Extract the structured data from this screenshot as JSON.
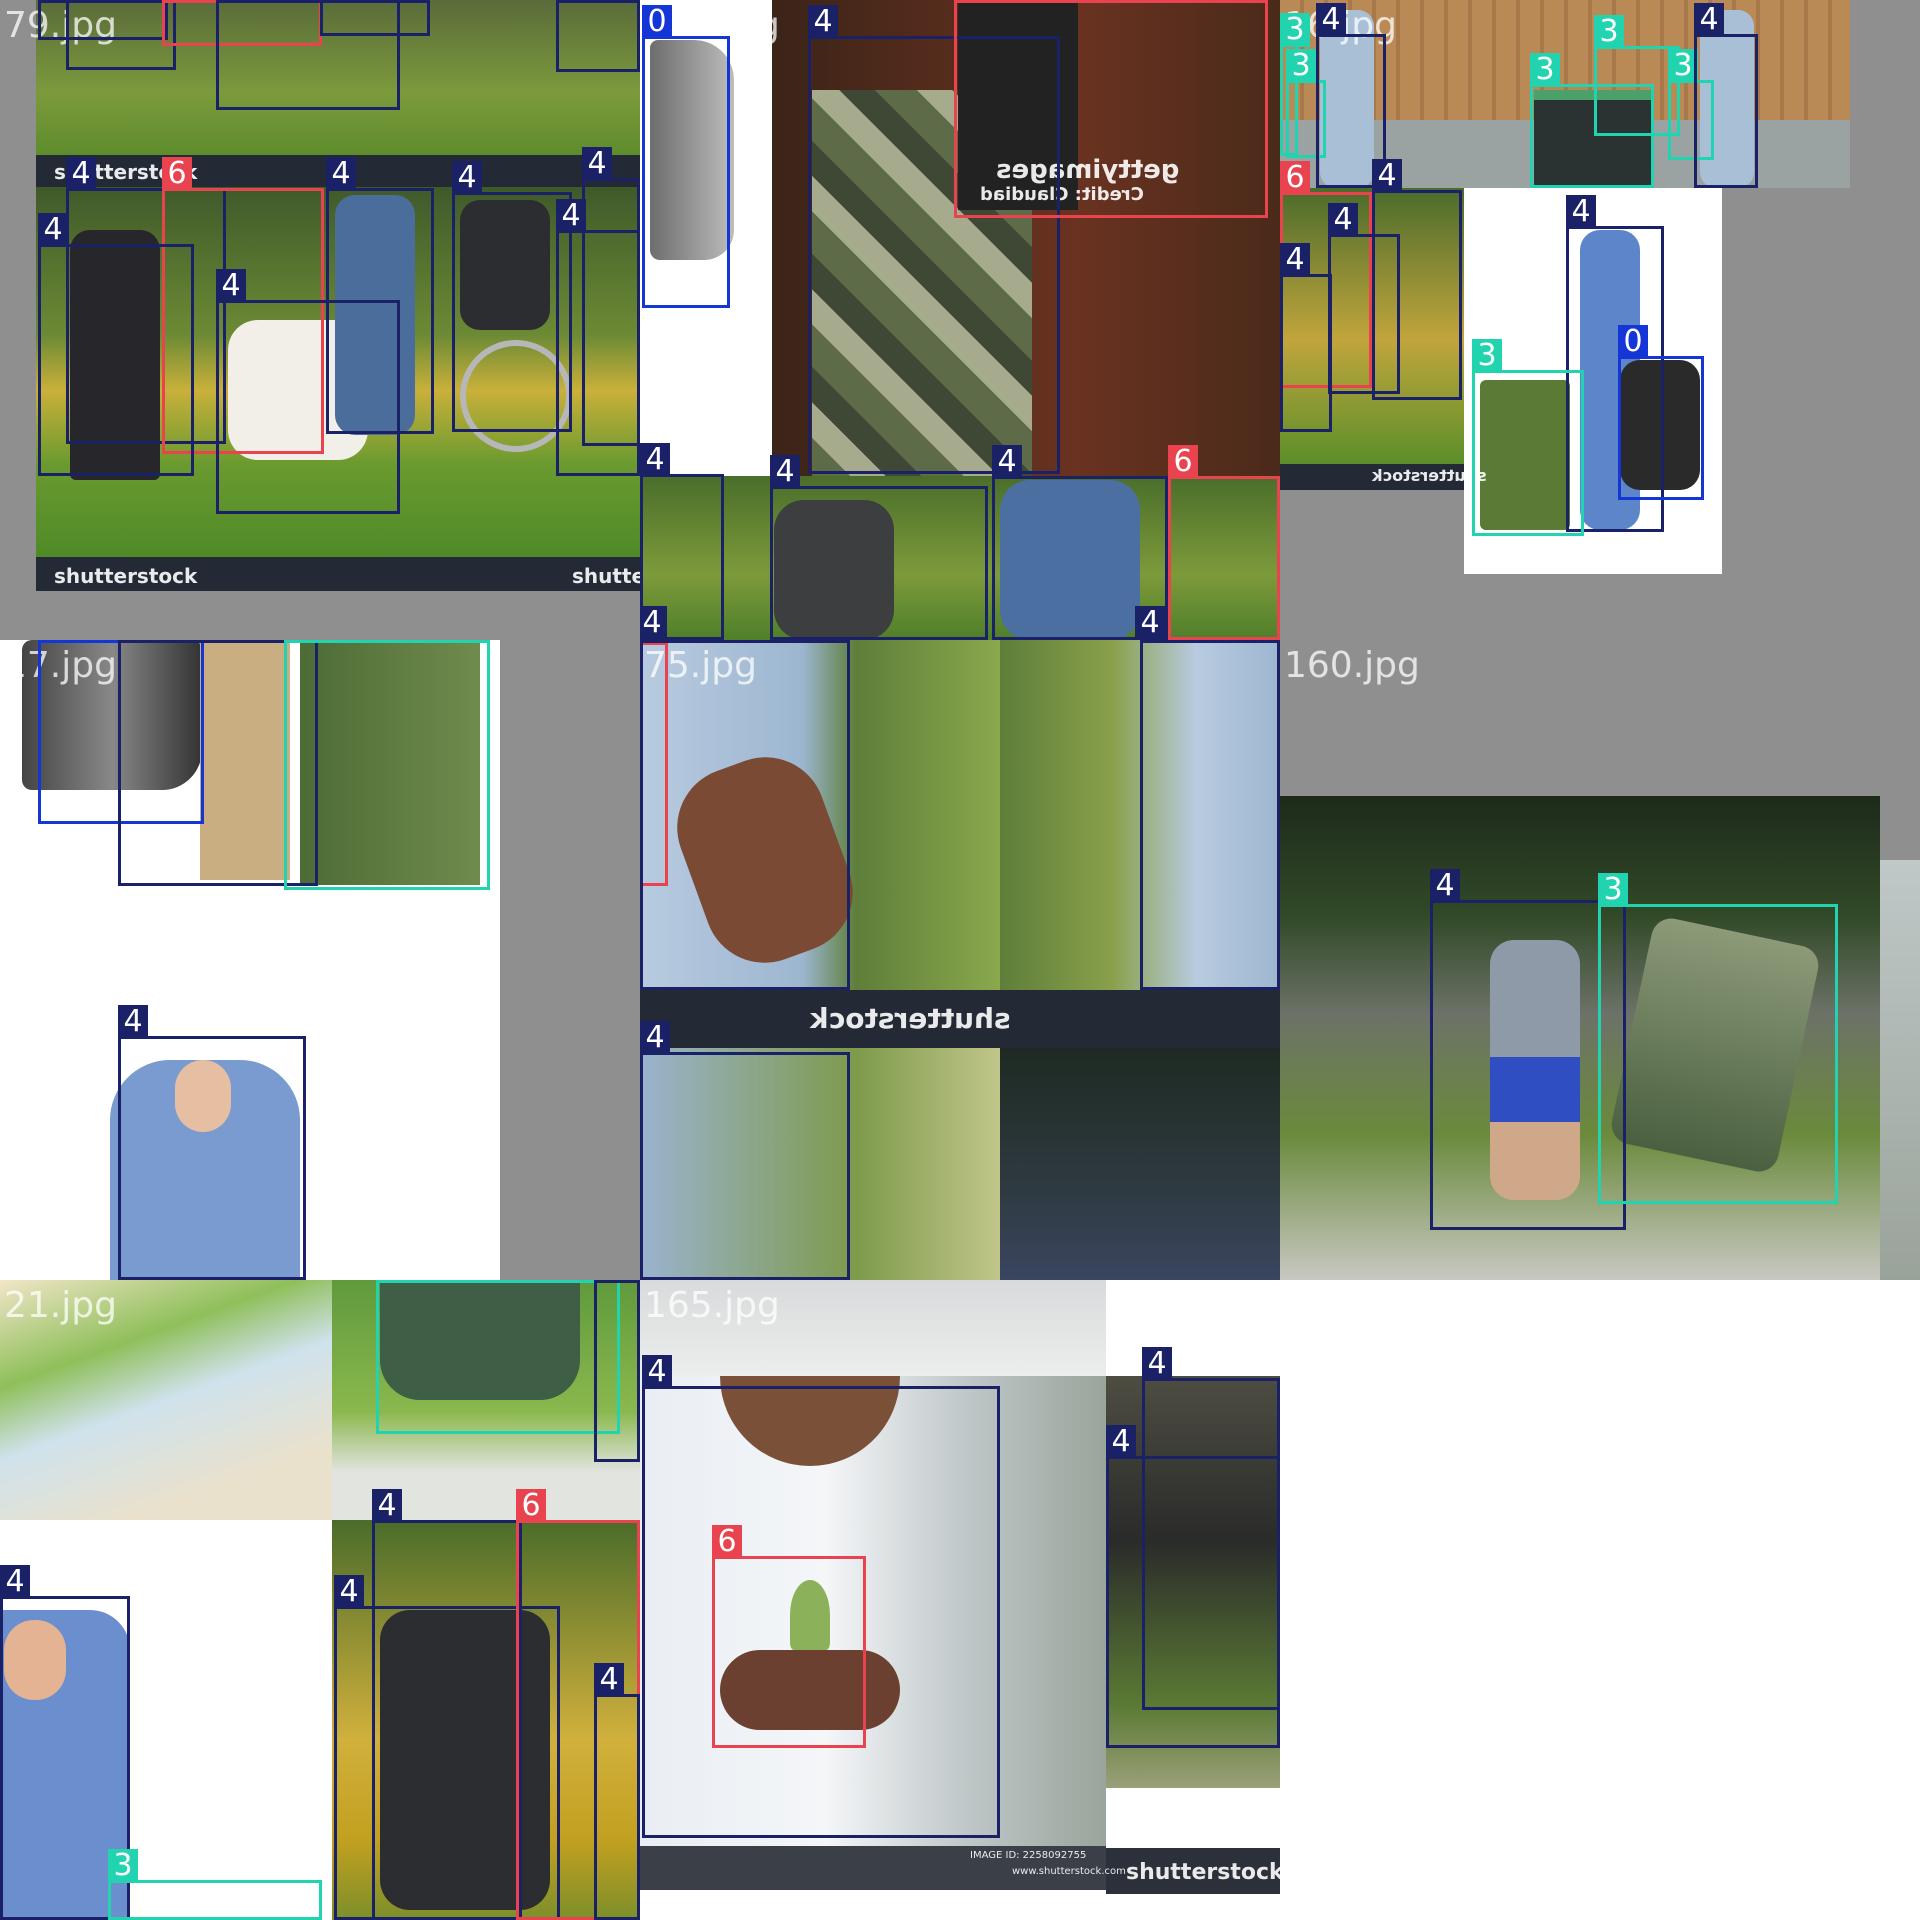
{
  "tiles": [
    {
      "name": "tile-79",
      "filename": "79.jpg"
    },
    {
      "name": "tile-101",
      "filename": "101.jpg"
    },
    {
      "name": "tile-16",
      "filename": "16.jpg"
    },
    {
      "name": "tile-17",
      "filename": "17.jpg"
    },
    {
      "name": "tile-75",
      "filename": "75.jpg"
    },
    {
      "name": "tile-160",
      "filename": "160.jpg"
    },
    {
      "name": "tile-21",
      "filename": "21.jpg"
    },
    {
      "name": "tile-165",
      "filename": "165.jpg"
    }
  ],
  "labels": {
    "c0": "0",
    "c3": "3",
    "c4": "4",
    "c6": "6"
  },
  "watermarks": {
    "shutterstock": "shutterstock",
    "getty": "gettyimages",
    "credit": "Credit: Claudiad",
    "image_id": "IMAGE ID: 2258092755",
    "site": "www.shutterstock.com"
  },
  "colors": {
    "c0": "#1536d6",
    "c3": "#22d3b0",
    "c4": "#1a2166",
    "c6": "#e8434f"
  }
}
